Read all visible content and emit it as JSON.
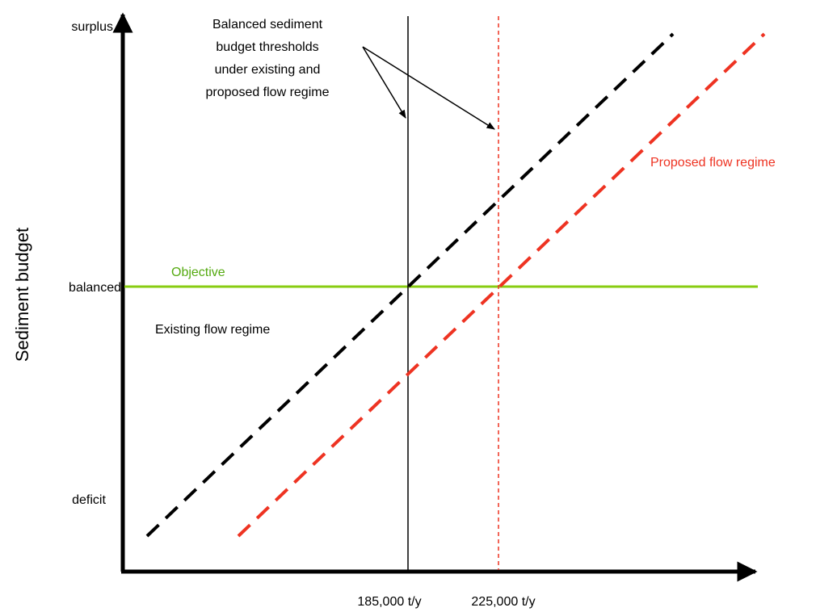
{
  "y_axis": {
    "label": "Sediment budget",
    "levels": [
      "surplus",
      "balanced",
      "deficit"
    ]
  },
  "x_axis": {
    "ticks": [
      "185,000 t/y",
      "225,000 t/y"
    ]
  },
  "annotation": {
    "lines": [
      "Balanced sediment",
      "budget thresholds",
      "under existing and",
      "proposed flow regime"
    ]
  },
  "objective_label": "Objective",
  "existing_label": "Existing flow regime",
  "proposed_label": "Proposed flow regime",
  "colors": {
    "axis": "#000000",
    "existing": "#000000",
    "proposed": "#ee3322",
    "objective": "#88cc11",
    "text": "#000000"
  }
}
